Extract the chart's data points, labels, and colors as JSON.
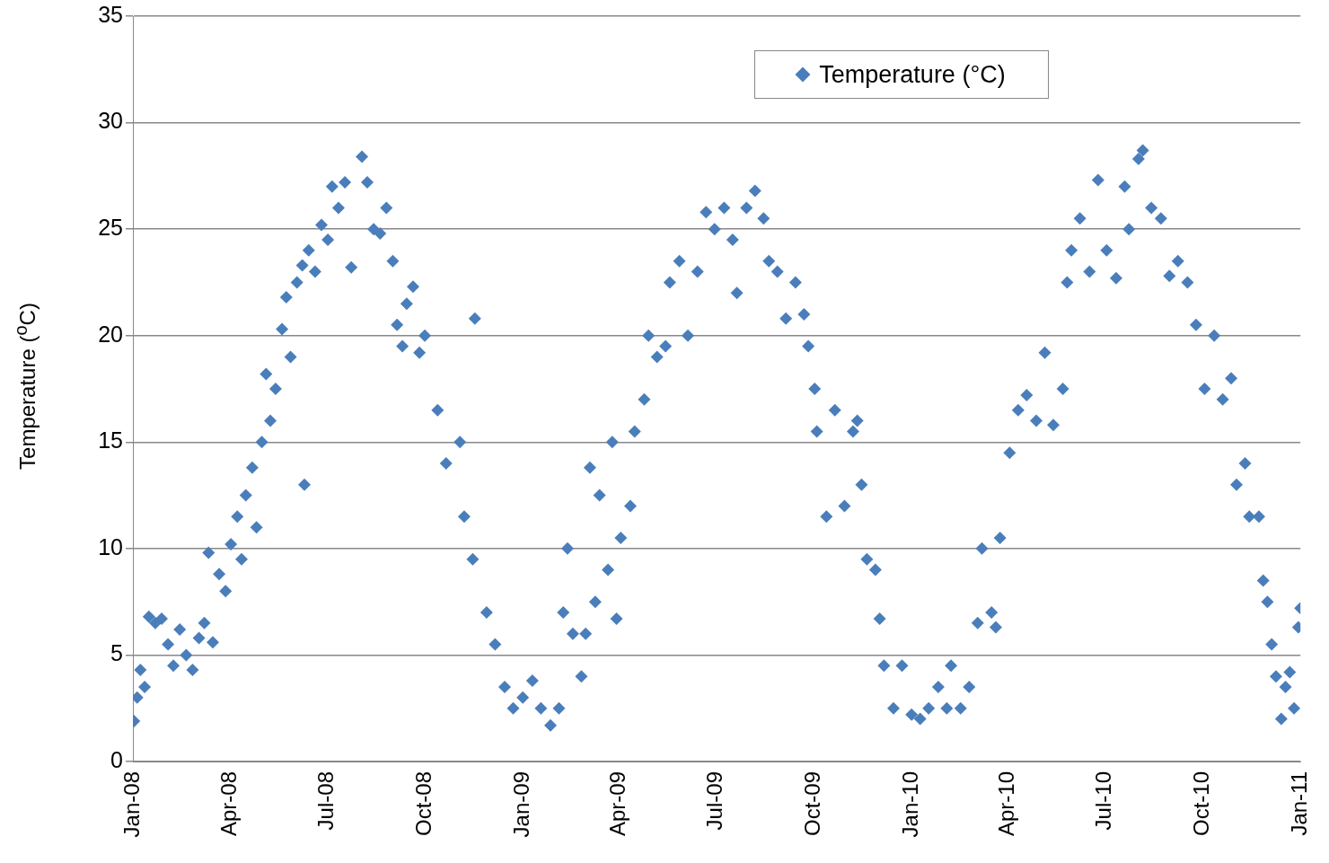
{
  "chart_data": {
    "type": "scatter",
    "ylabel": "Temperature ($^{o}$C)",
    "legend": "top right",
    "grid": "y",
    "marker": "diamond",
    "xlim": [
      "2008-01-01",
      "2011-01-01"
    ],
    "xticks": [
      {
        "value": "2008-01-01",
        "label": "Jan-08"
      },
      {
        "value": "2008-04-01",
        "label": "Apr-08"
      },
      {
        "value": "2008-07-01",
        "label": "Jul-08"
      },
      {
        "value": "2008-10-01",
        "label": "Oct-08"
      },
      {
        "value": "2009-01-01",
        "label": "Jan-09"
      },
      {
        "value": "2009-04-01",
        "label": "Apr-09"
      },
      {
        "value": "2009-07-01",
        "label": "Jul-09"
      },
      {
        "value": "2009-10-01",
        "label": "Oct-09"
      },
      {
        "value": "2010-01-01",
        "label": "Jan-10"
      },
      {
        "value": "2010-04-01",
        "label": "Apr-10"
      },
      {
        "value": "2010-07-01",
        "label": "Jul-10"
      },
      {
        "value": "2010-10-01",
        "label": "Oct-10"
      },
      {
        "value": "2011-01-01",
        "label": "Jan-11"
      }
    ],
    "ylim": [
      0,
      35
    ],
    "yticks": [
      0,
      5,
      10,
      15,
      20,
      25,
      30,
      35
    ],
    "series": [
      {
        "name": "Temperature (°C)",
        "color": "#4a7ebb",
        "x": [
          "2008-01-02",
          "2008-01-05",
          "2008-01-08",
          "2008-01-12",
          "2008-01-16",
          "2008-01-22",
          "2008-01-28",
          "2008-02-03",
          "2008-02-08",
          "2008-02-14",
          "2008-02-20",
          "2008-02-26",
          "2008-03-03",
          "2008-03-08",
          "2008-03-12",
          "2008-03-16",
          "2008-03-22",
          "2008-03-28",
          "2008-04-02",
          "2008-04-08",
          "2008-04-12",
          "2008-04-16",
          "2008-04-22",
          "2008-04-26",
          "2008-05-01",
          "2008-05-05",
          "2008-05-09",
          "2008-05-14",
          "2008-05-20",
          "2008-05-24",
          "2008-05-28",
          "2008-06-03",
          "2008-06-08",
          "2008-06-10",
          "2008-06-14",
          "2008-06-20",
          "2008-06-26",
          "2008-07-02",
          "2008-07-06",
          "2008-07-12",
          "2008-07-18",
          "2008-07-24",
          "2008-08-03",
          "2008-08-08",
          "2008-08-14",
          "2008-08-20",
          "2008-08-26",
          "2008-09-01",
          "2008-09-05",
          "2008-09-10",
          "2008-09-14",
          "2008-09-20",
          "2008-09-26",
          "2008-10-01",
          "2008-10-13",
          "2008-10-21",
          "2008-11-03",
          "2008-11-07",
          "2008-11-15",
          "2008-11-17",
          "2008-11-28",
          "2008-12-06",
          "2008-12-15",
          "2008-12-23",
          "2009-01-01",
          "2009-01-10",
          "2009-01-18",
          "2009-01-27",
          "2009-02-04",
          "2009-02-08",
          "2009-02-12",
          "2009-02-17",
          "2009-02-25",
          "2009-03-01",
          "2009-03-05",
          "2009-03-10",
          "2009-03-14",
          "2009-03-22",
          "2009-03-26",
          "2009-03-30",
          "2009-04-03",
          "2009-04-12",
          "2009-04-16",
          "2009-04-25",
          "2009-04-29",
          "2009-05-07",
          "2009-05-15",
          "2009-05-19",
          "2009-05-28",
          "2009-06-05",
          "2009-06-14",
          "2009-06-22",
          "2009-06-30",
          "2009-07-09",
          "2009-07-17",
          "2009-07-21",
          "2009-07-30",
          "2009-08-07",
          "2009-08-15",
          "2009-08-20",
          "2009-08-28",
          "2009-09-05",
          "2009-09-14",
          "2009-09-22",
          "2009-09-26",
          "2009-10-02",
          "2009-10-04",
          "2009-10-13",
          "2009-10-21",
          "2009-10-30",
          "2009-11-07",
          "2009-11-11",
          "2009-11-15",
          "2009-11-20",
          "2009-11-28",
          "2009-12-02",
          "2009-12-06",
          "2009-12-15",
          "2009-12-23",
          "2010-01-01",
          "2010-01-09",
          "2010-01-17",
          "2010-01-26",
          "2010-02-03",
          "2010-02-07",
          "2010-02-16",
          "2010-02-24",
          "2010-03-04",
          "2010-03-08",
          "2010-03-17",
          "2010-03-21",
          "2010-03-25",
          "2010-04-03",
          "2010-04-11",
          "2010-04-19",
          "2010-04-28",
          "2010-05-06",
          "2010-05-14",
          "2010-05-23",
          "2010-05-27",
          "2010-05-31",
          "2010-06-08",
          "2010-06-17",
          "2010-06-25",
          "2010-07-03",
          "2010-07-12",
          "2010-07-20",
          "2010-07-24",
          "2010-08-02",
          "2010-08-06",
          "2010-08-14",
          "2010-08-23",
          "2010-08-31",
          "2010-09-08",
          "2010-09-17",
          "2010-09-25",
          "2010-10-03",
          "2010-10-12",
          "2010-10-20",
          "2010-10-28",
          "2010-11-02",
          "2010-11-10",
          "2010-11-14",
          "2010-11-23",
          "2010-11-27",
          "2010-12-01",
          "2010-12-05",
          "2010-12-09",
          "2010-12-14",
          "2010-12-18",
          "2010-12-22",
          "2010-12-26",
          "2010-12-30",
          "2011-01-01"
        ],
        "values": [
          1.9,
          3.0,
          4.3,
          3.5,
          6.8,
          6.5,
          6.7,
          5.5,
          4.5,
          6.2,
          5.0,
          4.3,
          5.8,
          6.5,
          9.8,
          5.6,
          8.8,
          8.0,
          10.2,
          11.5,
          9.5,
          12.5,
          13.8,
          11.0,
          15.0,
          18.2,
          16.0,
          17.5,
          20.3,
          21.8,
          19.0,
          22.5,
          23.3,
          13.0,
          24.0,
          23.0,
          25.2,
          24.5,
          27.0,
          26.0,
          27.2,
          23.2,
          28.4,
          27.2,
          25.0,
          24.8,
          26.0,
          23.5,
          20.5,
          19.5,
          21.5,
          22.3,
          19.2,
          20.0,
          16.5,
          14.0,
          15.0,
          11.5,
          9.5,
          20.8,
          7.0,
          5.5,
          3.5,
          2.5,
          3.0,
          3.8,
          2.5,
          1.7,
          2.5,
          7.0,
          10.0,
          6.0,
          4.0,
          6.0,
          13.8,
          7.5,
          12.5,
          9.0,
          15.0,
          6.7,
          10.5,
          12.0,
          15.5,
          17.0,
          20.0,
          19.0,
          19.5,
          22.5,
          23.5,
          20.0,
          23.0,
          25.8,
          25.0,
          26.0,
          24.5,
          22.0,
          26.0,
          26.8,
          25.5,
          23.5,
          23.0,
          20.8,
          22.5,
          21.0,
          19.5,
          17.5,
          15.5,
          11.5,
          16.5,
          12.0,
          15.5,
          16.0,
          13.0,
          9.5,
          9.0,
          6.7,
          4.5,
          2.5,
          4.5,
          2.2,
          2.0,
          2.5,
          3.5,
          2.5,
          4.5,
          2.5,
          3.5,
          6.5,
          10.0,
          7.0,
          6.3,
          10.5,
          14.5,
          16.5,
          17.2,
          16.0,
          19.2,
          15.8,
          17.5,
          22.5,
          24.0,
          25.5,
          23.0,
          27.3,
          24.0,
          22.7,
          27.0,
          25.0,
          28.3,
          28.7,
          26.0,
          25.5,
          22.8,
          23.5,
          22.5,
          20.5,
          17.5,
          20.0,
          17.0,
          18.0,
          13.0,
          14.0,
          11.5,
          11.5,
          8.5,
          7.5,
          5.5,
          4.0,
          2.0,
          3.5,
          4.2,
          2.5,
          6.3,
          7.2
        ]
      }
    ]
  }
}
